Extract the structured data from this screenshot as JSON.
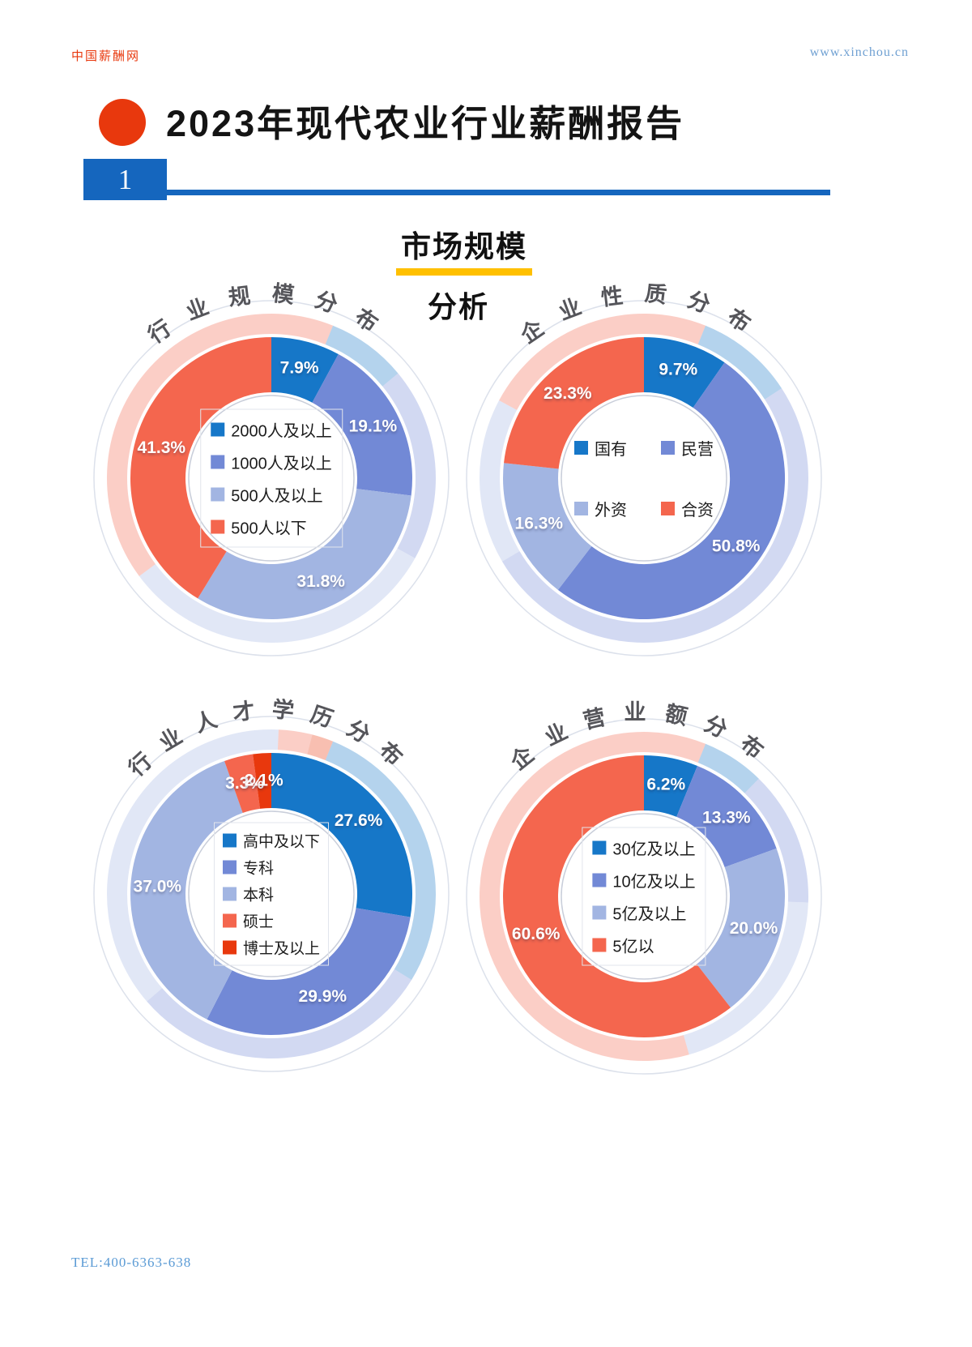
{
  "page": {
    "brand": "中国薪酬网",
    "website": "www.xinchou.cn",
    "title": "2023年现代农业行业薪酬报告",
    "page_number": "1",
    "section_title": "市场规模",
    "section_subtitle": "分析",
    "footer_tel": "TEL:400-6363-638"
  },
  "colors": {
    "accent_red": "#e8380d",
    "brand_blue": "#1566be",
    "highlight_yellow": "#ffc000",
    "blue_dark": "#1677c8",
    "blue_medium": "#7289d6",
    "blue_light": "#a2b5e2",
    "salmon": "#f4664e"
  },
  "chart_data": [
    {
      "type": "pie",
      "donut": true,
      "title": "行业规模分布",
      "unit": "%",
      "legend_layout": "column",
      "segments": [
        {
          "label": "2000人及以上",
          "value": 7.9,
          "display": "7.9%",
          "color": "#1677c8"
        },
        {
          "label": "1000人及以上",
          "value": 19.1,
          "display": "19.1%",
          "color": "#7289d6"
        },
        {
          "label": "500人及以上",
          "value": 31.8,
          "display": "31.8%",
          "color": "#a2b5e2"
        },
        {
          "label": "500人以下",
          "value": 41.3,
          "display": "41.3%",
          "color": "#f4664e"
        }
      ]
    },
    {
      "type": "pie",
      "donut": true,
      "title": "企业性质分布",
      "unit": "%",
      "legend_layout": "grid",
      "segments": [
        {
          "label": "国有",
          "value": 9.7,
          "display": "9.7%",
          "color": "#1677c8"
        },
        {
          "label": "民营",
          "value": 50.8,
          "display": "50.8%",
          "color": "#7289d6"
        },
        {
          "label": "外资",
          "value": 16.3,
          "display": "16.3%",
          "color": "#a2b5e2"
        },
        {
          "label": "合资",
          "value": 23.3,
          "display": "23.3%",
          "color": "#f4664e"
        }
      ]
    },
    {
      "type": "pie",
      "donut": true,
      "title": "行业人才学历分布",
      "unit": "%",
      "legend_layout": "column",
      "segments": [
        {
          "label": "高中及以下",
          "value": 27.6,
          "display": "27.6%",
          "color": "#1677c8"
        },
        {
          "label": "专科",
          "value": 29.9,
          "display": "29.9%",
          "color": "#7289d6"
        },
        {
          "label": "本科",
          "value": 37.0,
          "display": "37.0%",
          "color": "#a2b5e2"
        },
        {
          "label": "硕士",
          "value": 3.3,
          "display": "3.3%",
          "color": "#f4664e"
        },
        {
          "label": "博士及以上",
          "value": 2.1,
          "display": "2.1%",
          "color": "#e8380d"
        }
      ]
    },
    {
      "type": "pie",
      "donut": true,
      "title": "企业营业额分布",
      "unit": "%",
      "legend_layout": "column",
      "segments": [
        {
          "label": "30亿及以上",
          "value": 6.2,
          "display": "6.2%",
          "color": "#1677c8"
        },
        {
          "label": "10亿及以上",
          "value": 13.3,
          "display": "13.3%",
          "color": "#7289d6"
        },
        {
          "label": "5亿及以上",
          "value": 20.0,
          "display": "20.0%",
          "color": "#a2b5e2"
        },
        {
          "label": "5亿以",
          "value": 60.6,
          "display": "60.6%",
          "color": "#f4664e"
        }
      ]
    }
  ]
}
